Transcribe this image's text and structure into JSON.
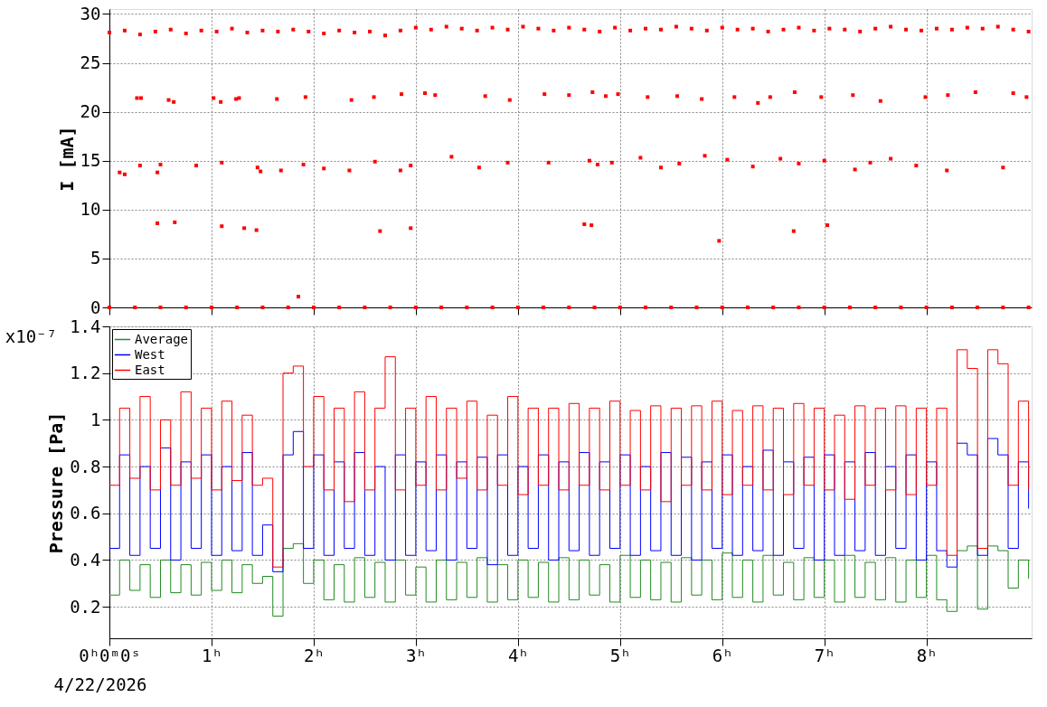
{
  "chart_data": [
    {
      "type": "scatter",
      "ylabel": "I [mA]",
      "xlim": [
        0,
        9.03
      ],
      "ylim": [
        0,
        30.5
      ],
      "yticks": [
        0,
        5,
        10,
        15,
        20,
        25,
        30
      ],
      "xticks": [
        {
          "value": 0,
          "label": null
        },
        {
          "value": 1,
          "label": null
        },
        {
          "value": 2,
          "label": null
        },
        {
          "value": 3,
          "label": null
        },
        {
          "value": 4,
          "label": null
        },
        {
          "value": 5,
          "label": null
        },
        {
          "value": 6,
          "label": null
        },
        {
          "value": 7,
          "label": null
        },
        {
          "value": 8,
          "label": null
        }
      ],
      "tick_labels": "y",
      "grid": true,
      "marker": "square",
      "series": [
        {
          "color": "#ff0000",
          "x": [
            0,
            0.15,
            0.3,
            0.45,
            0.6,
            0.75,
            0.9,
            1.05,
            1.2,
            1.35,
            1.5,
            1.65,
            1.8,
            1.95,
            2.1,
            2.25,
            2.4,
            2.55,
            2.7,
            2.85,
            3.0,
            3.15,
            3.3,
            3.45,
            3.6,
            3.75,
            3.9,
            4.05,
            4.2,
            4.35,
            4.5,
            4.65,
            4.8,
            4.95,
            5.1,
            5.25,
            5.4,
            5.55,
            5.7,
            5.85,
            6.0,
            6.15,
            6.3,
            6.45,
            6.6,
            6.75,
            6.9,
            7.05,
            7.2,
            7.35,
            7.5,
            7.65,
            7.8,
            7.95,
            8.1,
            8.25,
            8.4,
            8.55,
            8.7,
            8.85,
            9.0,
            0,
            0.25,
            0.5,
            0.75,
            1,
            1.25,
            1.5,
            1.75,
            2,
            2.25,
            2.5,
            2.75,
            3,
            3.25,
            3.5,
            3.75,
            4,
            4.25,
            4.5,
            4.75,
            5,
            5.25,
            5.5,
            5.75,
            6,
            6.25,
            6.5,
            6.75,
            7,
            7.25,
            7.5,
            7.75,
            8,
            8.25,
            8.5,
            8.75,
            9,
            0.27,
            0.31,
            0.58,
            0.63,
            1.02,
            1.09,
            1.24,
            1.27,
            1.64,
            1.92,
            2.37,
            2.59,
            2.86,
            3.09,
            3.19,
            3.68,
            3.92,
            4.26,
            4.5,
            4.73,
            4.86,
            4.98,
            5.27,
            5.56,
            5.8,
            6.12,
            6.35,
            6.47,
            6.71,
            6.97,
            7.28,
            7.55,
            7.99,
            8.21,
            8.48,
            8.85,
            8.98,
            0.1,
            0.15,
            0.3,
            0.47,
            0.5,
            0.85,
            1.1,
            1.45,
            1.48,
            1.68,
            1.9,
            2.1,
            2.35,
            2.6,
            2.85,
            2.95,
            3.35,
            3.62,
            3.9,
            4.3,
            4.7,
            4.78,
            4.92,
            5.2,
            5.4,
            5.58,
            5.83,
            6.05,
            6.3,
            6.57,
            6.75,
            7.0,
            7.3,
            7.45,
            7.65,
            7.9,
            8.2,
            8.75,
            0.47,
            0.64,
            1.1,
            1.32,
            1.44,
            2.65,
            2.95,
            4.65,
            4.72,
            6.7,
            7.03,
            5.97,
            1.85
          ],
          "values": [
            28.1,
            28.3,
            27.9,
            28.2,
            28.4,
            28.0,
            28.3,
            28.2,
            28.5,
            28.1,
            28.3,
            28.2,
            28.4,
            28.2,
            28.0,
            28.3,
            28.1,
            28.2,
            27.8,
            28.3,
            28.6,
            28.4,
            28.7,
            28.5,
            28.3,
            28.6,
            28.4,
            28.7,
            28.5,
            28.3,
            28.6,
            28.4,
            28.2,
            28.6,
            28.3,
            28.5,
            28.4,
            28.7,
            28.5,
            28.3,
            28.6,
            28.4,
            28.5,
            28.2,
            28.4,
            28.6,
            28.3,
            28.5,
            28.4,
            28.2,
            28.5,
            28.7,
            28.4,
            28.3,
            28.5,
            28.4,
            28.6,
            28.5,
            28.7,
            28.4,
            28.2,
            0,
            0,
            0,
            0,
            0,
            0,
            0,
            0,
            0,
            0,
            0,
            0,
            0,
            0,
            0,
            0,
            0,
            0,
            0,
            0,
            0,
            0,
            0,
            0,
            0,
            0,
            0,
            0,
            0,
            0,
            0,
            0,
            0,
            0,
            0,
            0,
            0,
            21.4,
            21.4,
            21.2,
            21.0,
            21.4,
            21.0,
            21.3,
            21.4,
            21.3,
            21.5,
            21.2,
            21.5,
            21.8,
            21.9,
            21.7,
            21.6,
            21.2,
            21.8,
            21.7,
            22.0,
            21.6,
            21.8,
            21.5,
            21.6,
            21.3,
            21.5,
            20.9,
            21.5,
            22.0,
            21.5,
            21.7,
            21.1,
            21.5,
            21.7,
            22.0,
            21.9,
            21.5,
            13.8,
            13.6,
            14.5,
            13.8,
            14.6,
            14.5,
            14.8,
            14.3,
            13.9,
            14.0,
            14.6,
            14.2,
            14.0,
            14.9,
            14.0,
            14.5,
            15.4,
            14.3,
            14.8,
            14.8,
            15.0,
            14.6,
            14.8,
            15.3,
            14.3,
            14.7,
            15.5,
            15.1,
            14.4,
            15.2,
            14.7,
            15.0,
            14.1,
            14.8,
            15.2,
            14.5,
            14.0,
            14.3,
            8.6,
            8.7,
            8.3,
            8.1,
            7.9,
            7.8,
            8.1,
            8.5,
            8.4,
            7.8,
            8.4,
            6.8,
            1.1
          ]
        }
      ]
    },
    {
      "type": "step",
      "ylabel": "Pressure [Pa]",
      "xlim": [
        0,
        9.03
      ],
      "ylim": [
        0.065,
        1.4
      ],
      "yticks": [
        0.2,
        0.4,
        0.6,
        0.8,
        1,
        1.2,
        1.4
      ],
      "xticks": [
        {
          "value": 0,
          "label": "0ʰ0ᵐ0ˢ"
        },
        {
          "value": 1,
          "label": "1ʰ"
        },
        {
          "value": 2,
          "label": "2ʰ"
        },
        {
          "value": 3,
          "label": "3ʰ"
        },
        {
          "value": 4,
          "label": "4ʰ"
        },
        {
          "value": 5,
          "label": "5ʰ"
        },
        {
          "value": 6,
          "label": "6ʰ"
        },
        {
          "value": 7,
          "label": "7ʰ"
        },
        {
          "value": 8,
          "label": "8ʰ"
        }
      ],
      "grid": true,
      "legend": "top left",
      "line_style": "solid",
      "annotations": [
        "x10⁻⁷",
        "4/22/2026"
      ],
      "x": [
        0,
        0.1,
        0.2,
        0.3,
        0.4,
        0.5,
        0.6,
        0.7,
        0.8,
        0.9,
        1,
        1.1,
        1.2,
        1.3,
        1.4,
        1.5,
        1.6,
        1.7,
        1.8,
        1.9,
        2,
        2.1,
        2.2,
        2.3,
        2.4,
        2.5,
        2.6,
        2.7,
        2.8,
        2.9,
        3,
        3.1,
        3.2,
        3.3,
        3.4,
        3.5,
        3.6,
        3.7,
        3.8,
        3.9,
        4,
        4.1,
        4.2,
        4.3,
        4.4,
        4.5,
        4.6,
        4.7,
        4.8,
        4.9,
        5,
        5.1,
        5.2,
        5.3,
        5.4,
        5.5,
        5.6,
        5.7,
        5.8,
        5.9,
        6,
        6.1,
        6.2,
        6.3,
        6.4,
        6.5,
        6.6,
        6.7,
        6.8,
        6.9,
        7,
        7.1,
        7.2,
        7.3,
        7.4,
        7.5,
        7.6,
        7.7,
        7.8,
        7.9,
        8,
        8.1,
        8.2,
        8.3,
        8.4,
        8.5,
        8.6,
        8.7,
        8.8,
        8.9,
        9
      ],
      "series": [
        {
          "name": "Average",
          "color": "#228b22",
          "values": [
            0.25,
            0.4,
            0.27,
            0.38,
            0.24,
            0.4,
            0.26,
            0.38,
            0.25,
            0.39,
            0.27,
            0.4,
            0.26,
            0.38,
            0.3,
            0.33,
            0.16,
            0.45,
            0.47,
            0.3,
            0.4,
            0.23,
            0.38,
            0.22,
            0.41,
            0.24,
            0.39,
            0.22,
            0.4,
            0.25,
            0.37,
            0.22,
            0.4,
            0.23,
            0.39,
            0.24,
            0.41,
            0.22,
            0.38,
            0.23,
            0.4,
            0.24,
            0.39,
            0.22,
            0.41,
            0.23,
            0.4,
            0.25,
            0.38,
            0.22,
            0.42,
            0.24,
            0.4,
            0.23,
            0.39,
            0.22,
            0.41,
            0.25,
            0.4,
            0.23,
            0.43,
            0.24,
            0.4,
            0.22,
            0.42,
            0.25,
            0.39,
            0.23,
            0.41,
            0.24,
            0.4,
            0.22,
            0.42,
            0.24,
            0.39,
            0.23,
            0.41,
            0.22,
            0.4,
            0.24,
            0.42,
            0.23,
            0.18,
            0.44,
            0.46,
            0.19,
            0.46,
            0.44,
            0.28,
            0.4,
            0.32
          ]
        },
        {
          "name": "West",
          "color": "#0000ff",
          "values": [
            0.45,
            0.85,
            0.42,
            0.8,
            0.45,
            0.88,
            0.4,
            0.82,
            0.45,
            0.85,
            0.42,
            0.8,
            0.44,
            0.86,
            0.42,
            0.55,
            0.35,
            0.85,
            0.95,
            0.45,
            0.85,
            0.42,
            0.82,
            0.45,
            0.86,
            0.42,
            0.8,
            0.4,
            0.85,
            0.42,
            0.82,
            0.44,
            0.85,
            0.4,
            0.82,
            0.45,
            0.84,
            0.38,
            0.85,
            0.42,
            0.8,
            0.45,
            0.85,
            0.4,
            0.82,
            0.44,
            0.86,
            0.42,
            0.82,
            0.45,
            0.85,
            0.42,
            0.8,
            0.44,
            0.86,
            0.42,
            0.84,
            0.4,
            0.82,
            0.45,
            0.85,
            0.42,
            0.8,
            0.44,
            0.87,
            0.42,
            0.82,
            0.45,
            0.84,
            0.4,
            0.85,
            0.42,
            0.82,
            0.44,
            0.86,
            0.42,
            0.8,
            0.45,
            0.85,
            0.4,
            0.82,
            0.44,
            0.37,
            0.9,
            0.85,
            0.42,
            0.92,
            0.85,
            0.45,
            0.82,
            0.62
          ]
        },
        {
          "name": "East",
          "color": "#ff0000",
          "values": [
            0.72,
            1.05,
            0.75,
            1.1,
            0.7,
            1.0,
            0.72,
            1.12,
            0.75,
            1.05,
            0.7,
            1.08,
            0.74,
            1.02,
            0.72,
            0.75,
            0.37,
            1.2,
            1.23,
            0.8,
            1.1,
            0.7,
            1.05,
            0.65,
            1.12,
            0.7,
            1.05,
            1.27,
            0.7,
            1.05,
            0.72,
            1.1,
            0.7,
            1.05,
            0.75,
            1.08,
            0.7,
            1.02,
            0.72,
            1.1,
            0.68,
            1.05,
            0.72,
            1.05,
            0.7,
            1.07,
            0.72,
            1.05,
            0.7,
            1.08,
            0.72,
            1.04,
            0.7,
            1.06,
            0.65,
            1.05,
            0.72,
            1.06,
            0.7,
            1.08,
            0.68,
            1.04,
            0.72,
            1.06,
            0.7,
            1.05,
            0.68,
            1.07,
            0.72,
            1.05,
            0.7,
            1.02,
            0.66,
            1.06,
            0.72,
            1.05,
            0.7,
            1.06,
            0.68,
            1.05,
            0.72,
            1.05,
            0.42,
            1.3,
            1.22,
            0.45,
            1.3,
            1.24,
            0.72,
            1.08,
            0.7
          ]
        }
      ]
    }
  ]
}
